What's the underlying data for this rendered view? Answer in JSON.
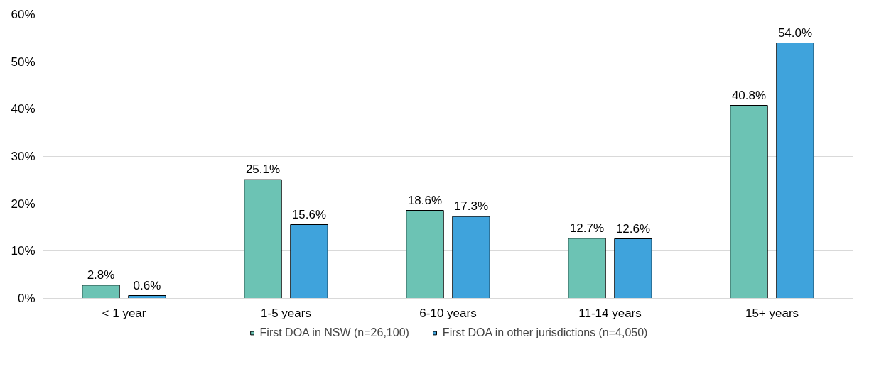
{
  "chart_data": {
    "type": "bar",
    "categories": [
      "< 1 year",
      "1-5 years",
      "6-10 years",
      "11-14 years",
      "15+ years"
    ],
    "series": [
      {
        "name": "First DOA in NSW (n=26,100)",
        "color": "#6cc3b4",
        "values": [
          2.8,
          25.1,
          18.6,
          12.7,
          40.8
        ],
        "value_labels": [
          "2.8%",
          "25.1%",
          "18.6%",
          "12.7%",
          "40.8%"
        ]
      },
      {
        "name": "First DOA in other jurisdictions (n=4,050)",
        "color": "#3fa3dc",
        "values": [
          0.6,
          15.6,
          17.3,
          12.6,
          54.0
        ],
        "value_labels": [
          "0.6%",
          "15.6%",
          "17.3%",
          "12.6%",
          "54.0%"
        ]
      }
    ],
    "ylim": [
      0,
      60
    ],
    "yticks": [
      {
        "value": 0,
        "label": "0%"
      },
      {
        "value": 10,
        "label": "10%"
      },
      {
        "value": 20,
        "label": "20%"
      },
      {
        "value": 30,
        "label": "30%"
      },
      {
        "value": 40,
        "label": "40%"
      },
      {
        "value": 50,
        "label": "50%"
      },
      {
        "value": 60,
        "label": "60%"
      }
    ],
    "grid": "y",
    "legend": "bottom"
  }
}
